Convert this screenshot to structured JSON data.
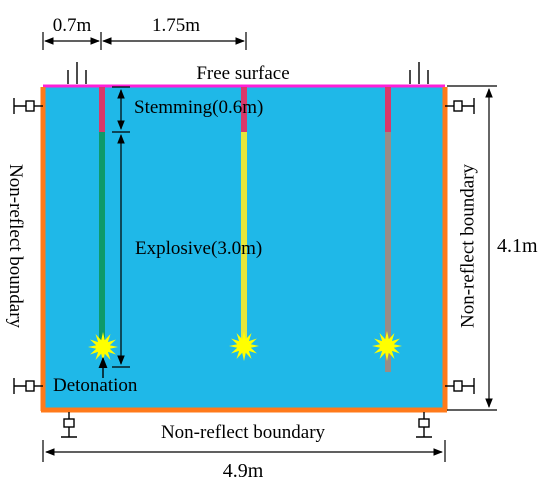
{
  "colors": {
    "medium": "#1fb8e8",
    "free_surface": "#ff1fd8",
    "boundary": "#ff7a1a",
    "stemming": "#d9396a",
    "explosive_1": "#0e9a6a",
    "explosive_2": "#e6e63a",
    "explosive_3": "#9a8c86",
    "detonation": "#ffff00"
  },
  "labels": {
    "spacing_edge": "0.7m",
    "spacing_holes": "1.75m",
    "free_surface": "Free surface",
    "stemming": "Stemming(0.6m)",
    "explosive": "Explosive(3.0m)",
    "detonation": "Detonation",
    "boundary_left": "Non-reflect boundary",
    "boundary_right": "Non-reflect boundary",
    "boundary_bottom": "Non-reflect boundary",
    "height": "4.1m",
    "width": "4.9m"
  },
  "blastholes": [
    {
      "id": "hole-1",
      "explosive_color_key": "explosive_1"
    },
    {
      "id": "hole-2",
      "explosive_color_key": "explosive_2"
    },
    {
      "id": "hole-3",
      "explosive_color_key": "explosive_3"
    }
  ]
}
